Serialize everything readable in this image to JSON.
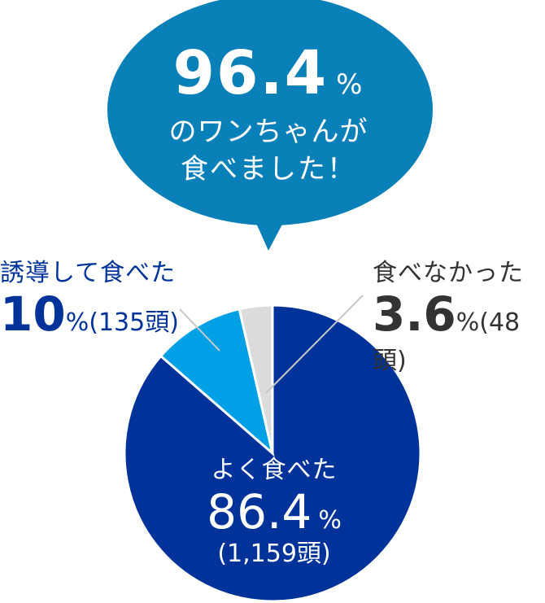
{
  "callout": {
    "value": "96.4",
    "unit": "%",
    "line1": "のワンちゃんが",
    "line2": "食べました！",
    "color": "#0a80b8"
  },
  "labels": {
    "ate_well": {
      "title": "よく食べた",
      "value": "86.4",
      "unit": "%",
      "count": "(1,159頭)"
    },
    "induced": {
      "title": "誘導して食べた",
      "value": "10",
      "unit": "%",
      "count": "(135頭)"
    },
    "not_ate": {
      "title": "食べなかった",
      "value": "3.6",
      "unit": "%",
      "count": "(48頭)"
    }
  },
  "chart_data": {
    "type": "pie",
    "title": "96.4%のワンちゃんが食べました！",
    "categories": [
      "よく食べた",
      "誘導して食べた",
      "食べなかった"
    ],
    "values": [
      86.4,
      10,
      3.6
    ],
    "counts": [
      1159,
      135,
      48
    ],
    "colors": [
      "#003399",
      "#00a0e6",
      "#dcdcdc"
    ],
    "start_angle": "12 o'clock, clockwise",
    "legend": "none (direct labels)"
  }
}
